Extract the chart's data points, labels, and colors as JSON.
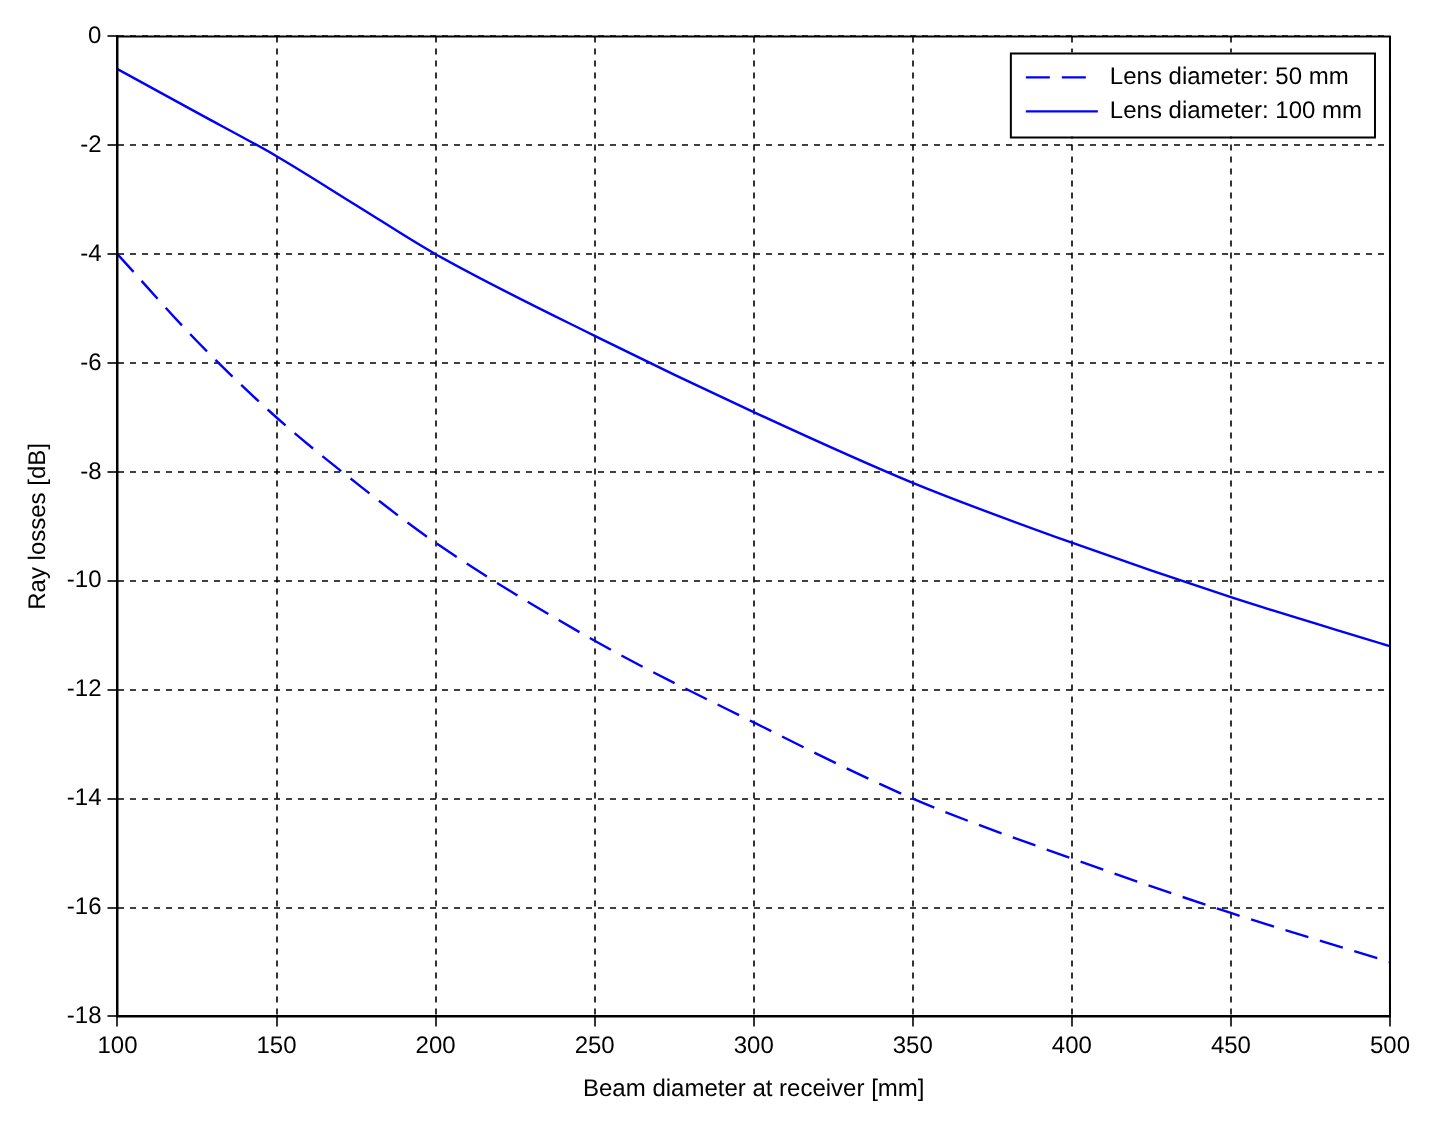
{
  "chart_data": {
    "type": "line",
    "xlabel": "Beam diameter at receiver [mm]",
    "ylabel": "Ray losses [dB]",
    "x": [
      100,
      125,
      150,
      175,
      200,
      250,
      300,
      350,
      400,
      450,
      500
    ],
    "series": [
      {
        "name": "Lens diameter: 50 mm",
        "color": "#0000ff",
        "line_style": "dashed",
        "values": [
          -4.0,
          -5.6,
          -7.0,
          -8.2,
          -9.3,
          -11.1,
          -12.6,
          -14.0,
          -15.1,
          -16.1,
          -17.0
        ]
      },
      {
        "name": "Lens diameter: 100 mm",
        "color": "#0000ff",
        "line_style": "solid",
        "values": [
          -0.6,
          -1.4,
          -2.2,
          -3.1,
          -4.0,
          -5.5,
          -6.9,
          -8.2,
          -9.3,
          -10.3,
          -11.2
        ]
      }
    ],
    "xlim": [
      100,
      500
    ],
    "ylim": [
      -18,
      0
    ],
    "xticks": [
      100,
      150,
      200,
      250,
      300,
      350,
      400,
      450,
      500
    ],
    "yticks": [
      -18,
      -16,
      -14,
      -12,
      -10,
      -8,
      -6,
      -4,
      -2,
      0
    ],
    "grid": true,
    "legend": "top right",
    "marker": "none"
  }
}
